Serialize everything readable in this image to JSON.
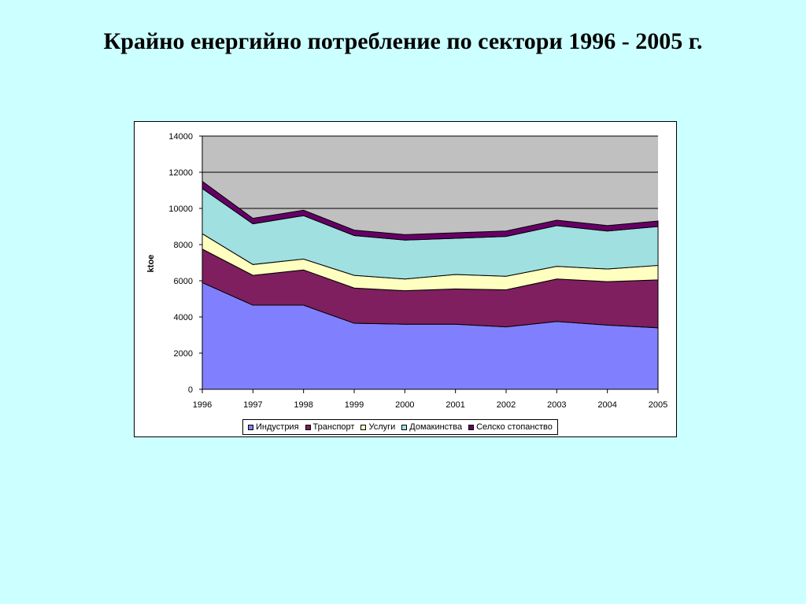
{
  "slide": {
    "title": "Крайно енергийно потребление по сектори 1996 - 2005 г."
  },
  "chart_data": {
    "type": "area",
    "stacked": true,
    "title": "",
    "xlabel": "",
    "ylabel": "ktoe",
    "x": [
      "1996",
      "1997",
      "1998",
      "1999",
      "2000",
      "2001",
      "2002",
      "2003",
      "2004",
      "2005"
    ],
    "ylim": [
      0,
      14000
    ],
    "yticks": [
      0,
      2000,
      4000,
      6000,
      8000,
      10000,
      12000,
      14000
    ],
    "grid": true,
    "legend_position": "bottom",
    "plot_background": "#c0c0c0",
    "series": [
      {
        "name": "Индустрия",
        "color": "#8080ff",
        "values": [
          5900,
          4650,
          4650,
          3650,
          3600,
          3600,
          3450,
          3750,
          3550,
          3400
        ]
      },
      {
        "name": "Транспорт",
        "color": "#7f1f5f",
        "values": [
          1850,
          1650,
          1950,
          1950,
          1850,
          1950,
          2050,
          2350,
          2400,
          2650
        ]
      },
      {
        "name": "Услуги",
        "color": "#ffffc0",
        "values": [
          850,
          600,
          600,
          700,
          650,
          800,
          750,
          700,
          700,
          800
        ]
      },
      {
        "name": "Домакинства",
        "color": "#a0e0e0",
        "values": [
          2500,
          2250,
          2400,
          2200,
          2150,
          2000,
          2200,
          2250,
          2100,
          2150
        ]
      },
      {
        "name": "Селско стопанство",
        "color": "#660066",
        "values": [
          400,
          300,
          300,
          300,
          300,
          300,
          300,
          300,
          300,
          300
        ]
      }
    ]
  }
}
